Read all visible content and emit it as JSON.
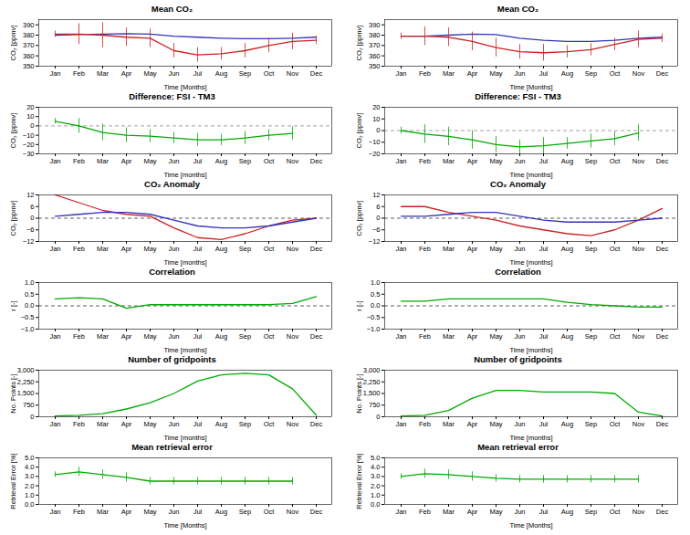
{
  "chart_data": [
    {
      "type": "line",
      "title": "Mean CO₂",
      "ylabel": "CO₂ [ppmv]",
      "xlabel": "Time [Months]",
      "categories": [
        "Jan",
        "Feb",
        "Mar",
        "Apr",
        "May",
        "Jun",
        "Jul",
        "Aug",
        "Sep",
        "Oct",
        "Nov",
        "Dec"
      ],
      "ylim": [
        350,
        395
      ],
      "yticks": [
        350,
        360,
        370,
        380,
        390
      ],
      "grid": false,
      "series": [
        {
          "color": "#3333bb",
          "values": [
            380,
            380.5,
            381,
            381.5,
            381,
            379,
            378,
            377,
            376.5,
            376.5,
            377,
            378
          ]
        },
        {
          "color": "#cc2222",
          "values": [
            381,
            381,
            380,
            378,
            377,
            365,
            361,
            362,
            365,
            370,
            374,
            375
          ],
          "errors": [
            3,
            10,
            12,
            9,
            9,
            7,
            7,
            6,
            7,
            7,
            8,
            4
          ]
        }
      ]
    },
    {
      "type": "line",
      "title": "Mean CO₂",
      "ylabel": "CO₂ [ppmv]",
      "xlabel": "Time [Months]",
      "categories": [
        "Jan",
        "Feb",
        "Mar",
        "Apr",
        "May",
        "Jun",
        "Jul",
        "Aug",
        "Sep",
        "Oct",
        "Nov",
        "Dec"
      ],
      "ylim": [
        350,
        395
      ],
      "yticks": [
        350,
        360,
        370,
        380,
        390
      ],
      "grid": false,
      "series": [
        {
          "color": "#3333bb",
          "values": [
            379,
            379,
            380,
            381,
            380.5,
            377,
            375,
            374,
            374,
            375,
            377,
            378
          ]
        },
        {
          "color": "#cc2222",
          "values": [
            379,
            379,
            378,
            374,
            368,
            364,
            363,
            364,
            366,
            371,
            376,
            377
          ],
          "errors": [
            3,
            9,
            9,
            9,
            9,
            7,
            8,
            6,
            6,
            6,
            8,
            4
          ]
        }
      ]
    },
    {
      "type": "line",
      "title": "Difference: FSI - TM3",
      "ylabel": "CO₂ [ppmv]",
      "xlabel": "Time [months]",
      "categories": [
        "Jan",
        "Feb",
        "Mar",
        "Apr",
        "May",
        "Jun",
        "Jul",
        "Aug",
        "Sep",
        "Oct",
        "Nov",
        "Dec"
      ],
      "ylim": [
        -30,
        20
      ],
      "yticks": [
        -30,
        -20,
        -10,
        0,
        10,
        20
      ],
      "grid": false,
      "hline": {
        "value": 0,
        "color": "#888888",
        "line_style": "dashed"
      },
      "series": [
        {
          "color": "#00aa00",
          "values": [
            5,
            0,
            -7,
            -10,
            -11,
            -13,
            -15,
            -15,
            -13,
            -10,
            -8,
            null
          ],
          "errors": [
            3,
            8,
            9,
            8,
            7,
            6,
            7,
            6,
            7,
            6,
            7,
            null
          ]
        }
      ]
    },
    {
      "type": "line",
      "title": "Difference: FSI - TM3",
      "ylabel": "CO₂ [ppmv]",
      "xlabel": "Time [months]",
      "categories": [
        "Jan",
        "Feb",
        "Mar",
        "Apr",
        "May",
        "Jun",
        "Jul",
        "Aug",
        "Sep",
        "Oct",
        "Nov",
        "Dec"
      ],
      "ylim": [
        -20,
        20
      ],
      "yticks": [
        -20,
        -10,
        0,
        10,
        20
      ],
      "grid": false,
      "hline": {
        "value": 0,
        "color": "#888888",
        "line_style": "dashed"
      },
      "series": [
        {
          "color": "#00aa00",
          "values": [
            0,
            -3,
            -5,
            -8,
            -12,
            -14,
            -13,
            -11,
            -9,
            -7,
            -2,
            null
          ],
          "errors": [
            3,
            8,
            8,
            8,
            7,
            6,
            7,
            5,
            6,
            6,
            7,
            null
          ]
        }
      ]
    },
    {
      "type": "line",
      "title": "CO₂ Anomaly",
      "ylabel": "CO₂ [ppmv]",
      "xlabel": "Time [months]",
      "categories": [
        "Jan",
        "Feb",
        "Mar",
        "Apr",
        "May",
        "Jun",
        "Jul",
        "Aug",
        "Sep",
        "Oct",
        "Nov",
        "Dec"
      ],
      "ylim": [
        -12,
        12
      ],
      "yticks": [
        -12,
        -6,
        0,
        6,
        12
      ],
      "grid": false,
      "hline": {
        "value": 0,
        "color": "#333333",
        "line_style": "dashed"
      },
      "series": [
        {
          "color": "#cc2222",
          "values": [
            12,
            8,
            4,
            2,
            1,
            -5,
            -10,
            -11,
            -8,
            -4,
            -1,
            0
          ]
        },
        {
          "color": "#3333bb",
          "values": [
            1,
            2,
            3,
            3,
            2,
            -1,
            -4,
            -5,
            -5,
            -4,
            -2,
            0
          ]
        }
      ]
    },
    {
      "type": "line",
      "title": "CO₂ Anomaly",
      "ylabel": "CO₂ [ppmv]",
      "xlabel": "Time [months]",
      "categories": [
        "Jan",
        "Feb",
        "Mar",
        "Apr",
        "May",
        "Jun",
        "Jul",
        "Aug",
        "Sep",
        "Oct",
        "Nov",
        "Dec"
      ],
      "ylim": [
        -12,
        12
      ],
      "yticks": [
        -12,
        -6,
        0,
        6,
        12
      ],
      "grid": false,
      "hline": {
        "value": 0,
        "color": "#333333",
        "line_style": "dashed"
      },
      "series": [
        {
          "color": "#cc2222",
          "values": [
            6,
            6,
            3,
            1,
            -1,
            -4,
            -6,
            -8,
            -9,
            -6,
            -1,
            5
          ]
        },
        {
          "color": "#3333bb",
          "values": [
            1,
            1,
            2,
            3,
            3,
            1,
            -1,
            -2,
            -2,
            -2,
            -1,
            0
          ]
        }
      ]
    },
    {
      "type": "line",
      "title": "Correlation",
      "ylabel": "r [-]",
      "xlabel": "Time [months]",
      "categories": [
        "Jan",
        "Feb",
        "Mar",
        "Apr",
        "May",
        "Jun",
        "Jul",
        "Aug",
        "Sep",
        "Oct",
        "Nov",
        "Dec"
      ],
      "ylim": [
        -1.0,
        1.0
      ],
      "yticks": [
        {
          "value": -1.0,
          "label": "−1.0"
        },
        {
          "value": -0.5,
          "label": "−0.5"
        },
        {
          "value": 0.0,
          "label": "0.0"
        },
        {
          "value": 0.5,
          "label": "0.5"
        },
        {
          "value": 1.0,
          "label": "1.0"
        }
      ],
      "grid": false,
      "hline": {
        "value": 0,
        "color": "#333333",
        "line_style": "dashed"
      },
      "series": [
        {
          "color": "#00aa00",
          "values": [
            0.3,
            0.35,
            0.3,
            -0.1,
            0.05,
            0.05,
            0.05,
            0.05,
            0.05,
            0.05,
            0.1,
            0.4
          ]
        }
      ]
    },
    {
      "type": "line",
      "title": "Correlation",
      "ylabel": "r [-]",
      "xlabel": "Time [months]",
      "categories": [
        "Jan",
        "Feb",
        "Mar",
        "Apr",
        "May",
        "Jun",
        "Jul",
        "Aug",
        "Sep",
        "Oct",
        "Nov",
        "Dec"
      ],
      "ylim": [
        -1.0,
        1.0
      ],
      "yticks": [
        {
          "value": -1.0,
          "label": "−1.0"
        },
        {
          "value": -0.5,
          "label": "−0.5"
        },
        {
          "value": 0.0,
          "label": "0.0"
        },
        {
          "value": 0.5,
          "label": "0.5"
        },
        {
          "value": 1.0,
          "label": "1.0"
        }
      ],
      "grid": false,
      "hline": {
        "value": 0,
        "color": "#333333",
        "line_style": "dashed"
      },
      "series": [
        {
          "color": "#00aa00",
          "values": [
            0.2,
            0.2,
            0.3,
            0.3,
            0.3,
            0.3,
            0.3,
            0.15,
            0.05,
            0.0,
            -0.05,
            -0.05
          ]
        }
      ]
    },
    {
      "type": "line",
      "title": "Number of gridpoints",
      "ylabel": "No. Points [-]",
      "xlabel": "Time [months]",
      "categories": [
        "Jan",
        "Feb",
        "Mar",
        "Apr",
        "May",
        "Jun",
        "Jul",
        "Aug",
        "Sep",
        "Oct",
        "Nov",
        "Dec"
      ],
      "ylim": [
        0,
        3000
      ],
      "yticks": [
        0,
        750,
        1500,
        2250,
        3000
      ],
      "grid": false,
      "series": [
        {
          "color": "#00aa00",
          "values": [
            50,
            100,
            200,
            500,
            900,
            1500,
            2300,
            2700,
            2800,
            2700,
            1800,
            100
          ]
        }
      ]
    },
    {
      "type": "line",
      "title": "Number of gridpoints",
      "ylabel": "No. Points [-]",
      "xlabel": "Time [months]",
      "categories": [
        "Jan",
        "Feb",
        "Mar",
        "Apr",
        "May",
        "Jun",
        "Jul",
        "Aug",
        "Sep",
        "Oct",
        "Nov",
        "Dec"
      ],
      "ylim": [
        0,
        3000
      ],
      "yticks": [
        0,
        750,
        1500,
        2250,
        3000
      ],
      "grid": false,
      "series": [
        {
          "color": "#00aa00",
          "values": [
            50,
            100,
            400,
            1200,
            1700,
            1700,
            1600,
            1600,
            1600,
            1500,
            300,
            50
          ]
        }
      ]
    },
    {
      "type": "line",
      "title": "Mean retrieval error",
      "ylabel": "Retrieval Error [%]",
      "xlabel": "Time [Months]",
      "categories": [
        "Jan",
        "Feb",
        "Mar",
        "Apr",
        "May",
        "Jun",
        "Jul",
        "Aug",
        "Sep",
        "Oct",
        "Nov",
        "Dec"
      ],
      "ylim": [
        0,
        5
      ],
      "yticks": [
        0,
        1,
        2,
        3,
        4,
        5
      ],
      "grid": false,
      "series": [
        {
          "color": "#00aa00",
          "values": [
            3.2,
            3.5,
            3.2,
            2.9,
            2.5,
            2.5,
            2.5,
            2.5,
            2.5,
            2.5,
            2.5,
            null
          ],
          "errors": [
            0.3,
            0.5,
            0.5,
            0.5,
            0.4,
            0.4,
            0.4,
            0.4,
            0.4,
            0.4,
            0.4,
            null
          ]
        }
      ]
    },
    {
      "type": "line",
      "title": "Mean retrieval error",
      "ylabel": "Retrieval Error [%]",
      "xlabel": "Time [Months]",
      "categories": [
        "Jan",
        "Feb",
        "Mar",
        "Apr",
        "May",
        "Jun",
        "Jul",
        "Aug",
        "Sep",
        "Oct",
        "Nov",
        "Dec"
      ],
      "ylim": [
        0,
        5
      ],
      "yticks": [
        0,
        1,
        2,
        3,
        4,
        5
      ],
      "grid": false,
      "series": [
        {
          "color": "#00aa00",
          "values": [
            3.0,
            3.3,
            3.2,
            3.0,
            2.8,
            2.7,
            2.7,
            2.7,
            2.7,
            2.7,
            2.7,
            null
          ],
          "errors": [
            0.3,
            0.5,
            0.5,
            0.5,
            0.4,
            0.4,
            0.4,
            0.4,
            0.4,
            0.4,
            0.4,
            null
          ]
        }
      ]
    }
  ]
}
